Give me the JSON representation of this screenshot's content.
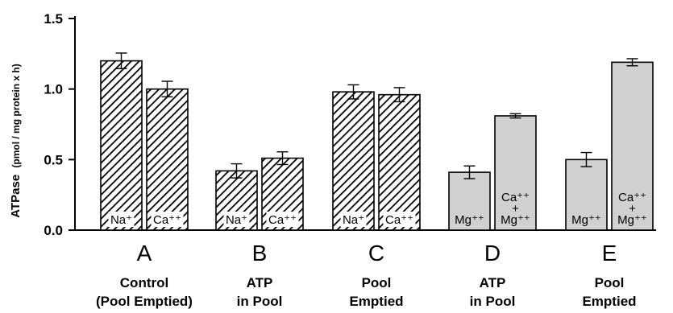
{
  "chart_data": {
    "type": "bar",
    "ylabel_main": "ATPase",
    "ylabel_unit": "(pmol / mg protein x h)",
    "ylim": [
      0,
      1.5
    ],
    "yticks": [
      "0.0",
      "0.5",
      "1.0",
      "1.5"
    ],
    "ytick_values": [
      0,
      0.5,
      1.0,
      1.5
    ],
    "colors": {
      "hatched_fill": "#ffffff",
      "hatch_stroke": "#000000",
      "solid_fill": "#d0d0d0",
      "axis": "#000000"
    },
    "groups": [
      {
        "letter": "A",
        "line1": "Control",
        "line2": "(Pool Emptied)",
        "bars": [
          {
            "ion_label": "Na⁺",
            "value": 1.2,
            "error": 0.055,
            "style": "hatched"
          },
          {
            "ion_label": "Ca⁺⁺",
            "value": 1.0,
            "error": 0.055,
            "style": "hatched"
          }
        ]
      },
      {
        "letter": "B",
        "line1": "ATP",
        "line2": "in Pool",
        "bars": [
          {
            "ion_label": "Na⁺",
            "value": 0.42,
            "error": 0.05,
            "style": "hatched"
          },
          {
            "ion_label": "Ca⁺⁺",
            "value": 0.51,
            "error": 0.045,
            "style": "hatched"
          }
        ]
      },
      {
        "letter": "C",
        "line1": "Pool",
        "line2": "Emptied",
        "bars": [
          {
            "ion_label": "Na⁺",
            "value": 0.98,
            "error": 0.05,
            "style": "hatched"
          },
          {
            "ion_label": "Ca⁺⁺",
            "value": 0.96,
            "error": 0.05,
            "style": "hatched"
          }
        ]
      },
      {
        "letter": "D",
        "line1": "ATP",
        "line2": "in Pool",
        "bars": [
          {
            "ion_label": "Mg⁺⁺",
            "value": 0.41,
            "error": 0.045,
            "style": "solid"
          },
          {
            "ion_label": "Ca⁺⁺\n+\nMg⁺⁺",
            "value": 0.81,
            "error": 0.015,
            "style": "solid"
          }
        ]
      },
      {
        "letter": "E",
        "line1": "Pool",
        "line2": "Emptied",
        "bars": [
          {
            "ion_label": "Mg⁺⁺",
            "value": 0.5,
            "error": 0.05,
            "style": "solid"
          },
          {
            "ion_label": "Ca⁺⁺\n+\nMg⁺⁺",
            "value": 1.19,
            "error": 0.025,
            "style": "solid"
          }
        ]
      }
    ]
  }
}
